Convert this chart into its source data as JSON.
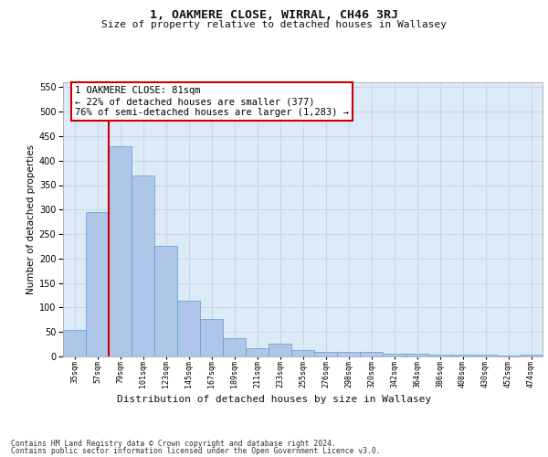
{
  "title": "1, OAKMERE CLOSE, WIRRAL, CH46 3RJ",
  "subtitle": "Size of property relative to detached houses in Wallasey",
  "xlabel": "Distribution of detached houses by size in Wallasey",
  "ylabel": "Number of detached properties",
  "categories": [
    "35sqm",
    "57sqm",
    "79sqm",
    "101sqm",
    "123sqm",
    "145sqm",
    "167sqm",
    "189sqm",
    "211sqm",
    "233sqm",
    "255sqm",
    "276sqm",
    "298sqm",
    "320sqm",
    "342sqm",
    "364sqm",
    "386sqm",
    "408sqm",
    "430sqm",
    "452sqm",
    "474sqm"
  ],
  "values": [
    55,
    295,
    430,
    370,
    225,
    113,
    76,
    38,
    16,
    26,
    14,
    9,
    9,
    9,
    5,
    5,
    4,
    4,
    4,
    1,
    4
  ],
  "bar_color": "#aec6e8",
  "bar_edge_color": "#5b9bd5",
  "grid_color": "#c8d8e8",
  "background_color": "#ddeaf7",
  "vline_color": "#cc0000",
  "vline_index": 1.5,
  "annotation_line1": "1 OAKMERE CLOSE: 81sqm",
  "annotation_line2": "← 22% of detached houses are smaller (377)",
  "annotation_line3": "76% of semi-detached houses are larger (1,283) →",
  "annotation_box_facecolor": "#ffffff",
  "annotation_box_edgecolor": "#cc0000",
  "ylim": [
    0,
    560
  ],
  "yticks": [
    0,
    50,
    100,
    150,
    200,
    250,
    300,
    350,
    400,
    450,
    500,
    550
  ],
  "footer1": "Contains HM Land Registry data © Crown copyright and database right 2024.",
  "footer2": "Contains public sector information licensed under the Open Government Licence v3.0.",
  "title_fontsize": 9.5,
  "subtitle_fontsize": 8,
  "ylabel_fontsize": 7.5,
  "xlabel_fontsize": 8,
  "ytick_fontsize": 7,
  "xtick_fontsize": 6,
  "ann_fontsize": 7.5,
  "footer_fontsize": 5.8
}
